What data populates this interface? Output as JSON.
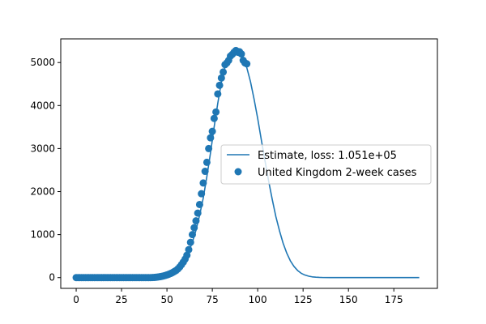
{
  "colors": {
    "series": "#1f77b4",
    "axis": "#000000",
    "background": "#ffffff",
    "legend_border": "#cccccc"
  },
  "chart_data": {
    "type": "line",
    "title": "",
    "xlabel": "",
    "ylabel": "",
    "xlim": [
      -8.5,
      199
    ],
    "ylim": [
      -250,
      5550
    ],
    "xticks": [
      0,
      25,
      50,
      75,
      100,
      125,
      150,
      175
    ],
    "yticks": [
      0,
      1000,
      2000,
      3000,
      4000,
      5000
    ],
    "grid": false,
    "legend_placement": "center-right",
    "series": [
      {
        "name": "Estimate, loss: 1.051e+05",
        "kind": "line",
        "x": [
          0,
          5,
          10,
          15,
          20,
          25,
          30,
          35,
          40,
          42,
          44,
          46,
          48,
          50,
          52,
          54,
          56,
          58,
          60,
          62,
          64,
          66,
          68,
          70,
          72,
          74,
          76,
          78,
          80,
          82,
          84,
          86,
          88,
          90,
          92,
          94,
          96,
          98,
          100,
          102,
          104,
          106,
          108,
          110,
          112,
          114,
          116,
          118,
          120,
          122,
          124,
          126,
          128,
          130,
          132,
          134,
          136,
          140,
          145,
          150,
          160,
          170,
          180,
          189
        ],
        "y": [
          0,
          0,
          0,
          0,
          0,
          0,
          0,
          0,
          3,
          8,
          15,
          25,
          40,
          60,
          95,
          140,
          210,
          300,
          430,
          600,
          820,
          1100,
          1450,
          1850,
          2350,
          2900,
          3500,
          4050,
          4550,
          4900,
          5130,
          5250,
          5300,
          5250,
          5120,
          4880,
          4560,
          4150,
          3700,
          3200,
          2720,
          2250,
          1820,
          1420,
          1090,
          800,
          570,
          390,
          260,
          165,
          100,
          60,
          35,
          18,
          10,
          5,
          2,
          1,
          0,
          0,
          0,
          0,
          0,
          0
        ]
      },
      {
        "name": "United Kingdom 2-week cases",
        "kind": "scatter",
        "x": [
          0,
          1,
          2,
          3,
          4,
          5,
          6,
          7,
          8,
          9,
          10,
          11,
          12,
          13,
          14,
          15,
          16,
          17,
          18,
          19,
          20,
          21,
          22,
          23,
          24,
          25,
          26,
          27,
          28,
          29,
          30,
          31,
          32,
          33,
          34,
          35,
          36,
          37,
          38,
          39,
          40,
          41,
          42,
          43,
          44,
          45,
          46,
          47,
          48,
          49,
          50,
          51,
          52,
          53,
          54,
          55,
          56,
          57,
          58,
          59,
          60,
          61,
          62,
          63,
          64,
          65,
          66,
          67,
          68,
          69,
          70,
          71,
          72,
          73,
          74,
          75,
          76,
          77,
          78,
          79,
          80,
          81,
          82,
          83,
          84,
          85,
          86,
          87,
          88,
          89,
          90,
          91,
          92,
          93,
          94
        ],
        "y": [
          0,
          0,
          0,
          0,
          0,
          0,
          0,
          0,
          0,
          0,
          0,
          0,
          0,
          0,
          0,
          0,
          0,
          0,
          0,
          0,
          0,
          0,
          0,
          0,
          0,
          0,
          0,
          0,
          0,
          0,
          0,
          0,
          0,
          0,
          0,
          0,
          0,
          0,
          0,
          0,
          0,
          0,
          2,
          4,
          8,
          14,
          20,
          28,
          38,
          50,
          62,
          78,
          95,
          115,
          140,
          165,
          200,
          245,
          300,
          360,
          430,
          520,
          650,
          820,
          1000,
          1160,
          1320,
          1500,
          1700,
          1950,
          2200,
          2470,
          2680,
          3000,
          3250,
          3400,
          3700,
          3850,
          4270,
          4470,
          4640,
          4780,
          4950,
          4990,
          5050,
          5150,
          5190,
          5240,
          5280,
          5240,
          5250,
          5200,
          5050,
          4990,
          4970
        ]
      }
    ]
  }
}
